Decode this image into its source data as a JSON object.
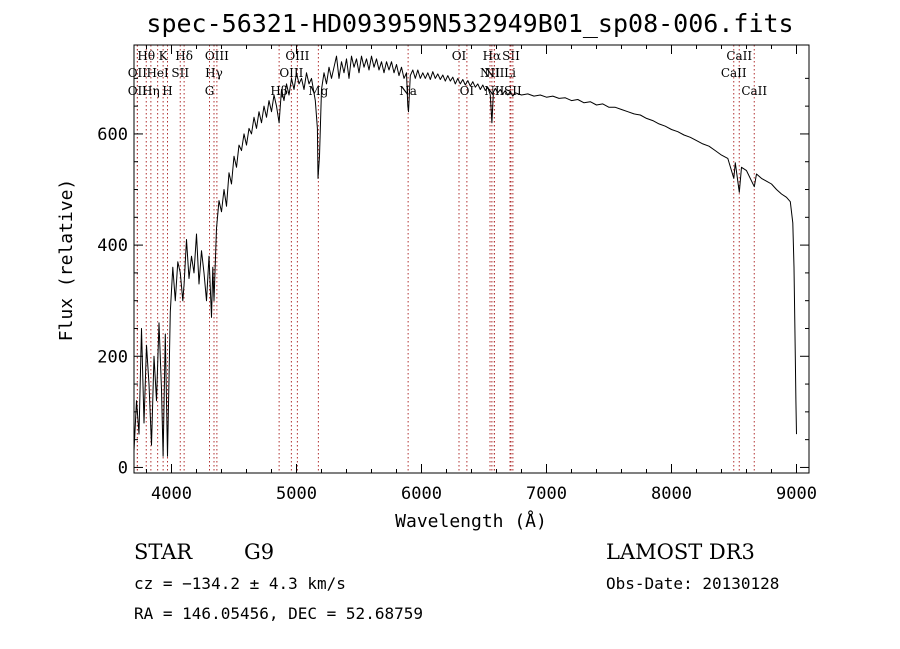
{
  "chart_data": {
    "type": "line",
    "title": "spec-56321-HD093959N532949B01_sp08-006.fits",
    "xlabel": "Wavelength (Å)",
    "ylabel": "Flux (relative)",
    "xlim": [
      3700,
      9100
    ],
    "ylim": [
      -10,
      760
    ],
    "xticks": [
      4000,
      5000,
      6000,
      7000,
      8000,
      9000
    ],
    "yticks": [
      0,
      200,
      400,
      600
    ],
    "grid": false,
    "series": [
      {
        "points": [
          [
            3700,
            30
          ],
          [
            3720,
            120
          ],
          [
            3740,
            60
          ],
          [
            3760,
            250
          ],
          [
            3780,
            80
          ],
          [
            3800,
            220
          ],
          [
            3820,
            150
          ],
          [
            3840,
            40
          ],
          [
            3860,
            200
          ],
          [
            3880,
            120
          ],
          [
            3900,
            260
          ],
          [
            3920,
            140
          ],
          [
            3933,
            20
          ],
          [
            3950,
            240
          ],
          [
            3968,
            20
          ],
          [
            3990,
            280
          ],
          [
            4010,
            360
          ],
          [
            4030,
            300
          ],
          [
            4050,
            370
          ],
          [
            4070,
            350
          ],
          [
            4090,
            300
          ],
          [
            4101,
            330
          ],
          [
            4120,
            410
          ],
          [
            4140,
            340
          ],
          [
            4160,
            380
          ],
          [
            4180,
            350
          ],
          [
            4200,
            420
          ],
          [
            4220,
            330
          ],
          [
            4240,
            390
          ],
          [
            4260,
            350
          ],
          [
            4280,
            300
          ],
          [
            4300,
            380
          ],
          [
            4320,
            270
          ],
          [
            4330,
            360
          ],
          [
            4340,
            300
          ],
          [
            4360,
            430
          ],
          [
            4380,
            480
          ],
          [
            4400,
            460
          ],
          [
            4420,
            500
          ],
          [
            4440,
            470
          ],
          [
            4460,
            530
          ],
          [
            4480,
            510
          ],
          [
            4500,
            560
          ],
          [
            4520,
            540
          ],
          [
            4540,
            580
          ],
          [
            4560,
            570
          ],
          [
            4580,
            600
          ],
          [
            4600,
            580
          ],
          [
            4620,
            610
          ],
          [
            4640,
            600
          ],
          [
            4660,
            630
          ],
          [
            4680,
            610
          ],
          [
            4700,
            640
          ],
          [
            4720,
            620
          ],
          [
            4740,
            650
          ],
          [
            4760,
            630
          ],
          [
            4780,
            660
          ],
          [
            4800,
            640
          ],
          [
            4820,
            670
          ],
          [
            4840,
            650
          ],
          [
            4861,
            620
          ],
          [
            4880,
            680
          ],
          [
            4900,
            660
          ],
          [
            4920,
            690
          ],
          [
            4940,
            670
          ],
          [
            4960,
            700
          ],
          [
            4980,
            680
          ],
          [
            5000,
            710
          ],
          [
            5020,
            690
          ],
          [
            5040,
            700
          ],
          [
            5060,
            680
          ],
          [
            5080,
            710
          ],
          [
            5100,
            690
          ],
          [
            5120,
            700
          ],
          [
            5150,
            660
          ],
          [
            5167,
            610
          ],
          [
            5172,
            520
          ],
          [
            5184,
            560
          ],
          [
            5200,
            680
          ],
          [
            5220,
            710
          ],
          [
            5240,
            690
          ],
          [
            5260,
            720
          ],
          [
            5280,
            700
          ],
          [
            5300,
            720
          ],
          [
            5320,
            740
          ],
          [
            5340,
            700
          ],
          [
            5360,
            730
          ],
          [
            5380,
            710
          ],
          [
            5400,
            735
          ],
          [
            5420,
            700
          ],
          [
            5440,
            740
          ],
          [
            5460,
            720
          ],
          [
            5480,
            735
          ],
          [
            5500,
            710
          ],
          [
            5520,
            740
          ],
          [
            5540,
            720
          ],
          [
            5560,
            735
          ],
          [
            5580,
            715
          ],
          [
            5600,
            740
          ],
          [
            5620,
            720
          ],
          [
            5640,
            735
          ],
          [
            5660,
            715
          ],
          [
            5680,
            730
          ],
          [
            5700,
            710
          ],
          [
            5720,
            730
          ],
          [
            5740,
            715
          ],
          [
            5760,
            730
          ],
          [
            5780,
            710
          ],
          [
            5800,
            725
          ],
          [
            5820,
            705
          ],
          [
            5840,
            720
          ],
          [
            5860,
            700
          ],
          [
            5880,
            710
          ],
          [
            5890,
            650
          ],
          [
            5896,
            640
          ],
          [
            5910,
            705
          ],
          [
            5930,
            715
          ],
          [
            5950,
            700
          ],
          [
            5970,
            715
          ],
          [
            5990,
            700
          ],
          [
            6010,
            710
          ],
          [
            6030,
            700
          ],
          [
            6050,
            710
          ],
          [
            6070,
            698
          ],
          [
            6090,
            712
          ],
          [
            6110,
            700
          ],
          [
            6130,
            708
          ],
          [
            6150,
            698
          ],
          [
            6170,
            706
          ],
          [
            6190,
            695
          ],
          [
            6210,
            705
          ],
          [
            6230,
            695
          ],
          [
            6250,
            702
          ],
          [
            6270,
            690
          ],
          [
            6290,
            700
          ],
          [
            6310,
            690
          ],
          [
            6330,
            698
          ],
          [
            6350,
            688
          ],
          [
            6370,
            696
          ],
          [
            6390,
            686
          ],
          [
            6410,
            694
          ],
          [
            6430,
            684
          ],
          [
            6450,
            690
          ],
          [
            6470,
            680
          ],
          [
            6490,
            688
          ],
          [
            6510,
            678
          ],
          [
            6530,
            684
          ],
          [
            6550,
            670
          ],
          [
            6563,
            620
          ],
          [
            6575,
            675
          ],
          [
            6590,
            682
          ],
          [
            6610,
            674
          ],
          [
            6630,
            680
          ],
          [
            6650,
            672
          ],
          [
            6670,
            678
          ],
          [
            6690,
            670
          ],
          [
            6710,
            676
          ],
          [
            6730,
            668
          ],
          [
            6750,
            674
          ],
          [
            6800,
            670
          ],
          [
            6850,
            672
          ],
          [
            6900,
            668
          ],
          [
            6950,
            670
          ],
          [
            7000,
            666
          ],
          [
            7050,
            668
          ],
          [
            7100,
            664
          ],
          [
            7150,
            665
          ],
          [
            7200,
            660
          ],
          [
            7250,
            662
          ],
          [
            7300,
            656
          ],
          [
            7350,
            658
          ],
          [
            7400,
            652
          ],
          [
            7450,
            654
          ],
          [
            7500,
            648
          ],
          [
            7550,
            648
          ],
          [
            7600,
            644
          ],
          [
            7650,
            640
          ],
          [
            7700,
            636
          ],
          [
            7750,
            634
          ],
          [
            7800,
            628
          ],
          [
            7850,
            624
          ],
          [
            7900,
            618
          ],
          [
            7950,
            614
          ],
          [
            8000,
            608
          ],
          [
            8050,
            604
          ],
          [
            8100,
            598
          ],
          [
            8150,
            594
          ],
          [
            8200,
            588
          ],
          [
            8250,
            582
          ],
          [
            8300,
            578
          ],
          [
            8350,
            570
          ],
          [
            8400,
            562
          ],
          [
            8450,
            556
          ],
          [
            8498,
            520
          ],
          [
            8510,
            548
          ],
          [
            8542,
            495
          ],
          [
            8560,
            540
          ],
          [
            8600,
            534
          ],
          [
            8662,
            505
          ],
          [
            8680,
            528
          ],
          [
            8720,
            520
          ],
          [
            8760,
            515
          ],
          [
            8800,
            510
          ],
          [
            8840,
            500
          ],
          [
            8880,
            492
          ],
          [
            8920,
            486
          ],
          [
            8950,
            478
          ],
          [
            8970,
            440
          ],
          [
            8980,
            360
          ],
          [
            8990,
            200
          ],
          [
            8995,
            120
          ],
          [
            9000,
            60
          ]
        ]
      }
    ],
    "line_markers": [
      {
        "label": "Hθ",
        "x": 3798,
        "row": 1
      },
      {
        "label": "K",
        "x": 3933,
        "row": 1
      },
      {
        "label": "Hδ",
        "x": 4101,
        "row": 1
      },
      {
        "label": "OII",
        "x": 3727,
        "row": 2
      },
      {
        "label": "HeI",
        "x": 3889,
        "row": 2
      },
      {
        "label": "SII",
        "x": 4070,
        "row": 2
      },
      {
        "label": "OII",
        "x": 3727,
        "row": 3
      },
      {
        "label": "Hη",
        "x": 3835,
        "row": 3
      },
      {
        "label": "H",
        "x": 3968,
        "row": 3
      },
      {
        "label": "OIII",
        "x": 4363,
        "row": 1
      },
      {
        "label": "Hγ",
        "x": 4340,
        "row": 2
      },
      {
        "label": "G",
        "x": 4304,
        "row": 3
      },
      {
        "label": "OIII",
        "x": 5007,
        "row": 1
      },
      {
        "label": "OIII",
        "x": 4959,
        "row": 2
      },
      {
        "label": "Hβ",
        "x": 4861,
        "row": 3
      },
      {
        "label": "Mg",
        "x": 5175,
        "row": 3
      },
      {
        "label": "Na",
        "x": 5893,
        "row": 3
      },
      {
        "label": "OI",
        "x": 6300,
        "row": 1
      },
      {
        "label": "NII",
        "x": 6548,
        "row": 2
      },
      {
        "label": "OI",
        "x": 6363,
        "row": 3
      },
      {
        "label": "Hα",
        "x": 6563,
        "row": 1
      },
      {
        "label": "SII",
        "x": 6716,
        "row": 1
      },
      {
        "label": "NII",
        "x": 6583,
        "row": 2
      },
      {
        "label": "Li",
        "x": 6708,
        "row": 2
      },
      {
        "label": "NII",
        "x": 6583,
        "row": 3
      },
      {
        "label": "SII",
        "x": 6731,
        "row": 3
      },
      {
        "label": "CaII",
        "x": 8542,
        "row": 1
      },
      {
        "label": "CaII",
        "x": 8498,
        "row": 2
      },
      {
        "label": "CaII",
        "x": 8662,
        "row": 3
      }
    ]
  },
  "info": {
    "object_type": "STAR",
    "subclass": "G9",
    "survey": "LAMOST DR3",
    "cz": "cz = −134.2 ± 4.3 km/s",
    "obs_date": "Obs-Date: 20130128",
    "radec": "RA = 146.05456, DEC =  52.68759"
  }
}
